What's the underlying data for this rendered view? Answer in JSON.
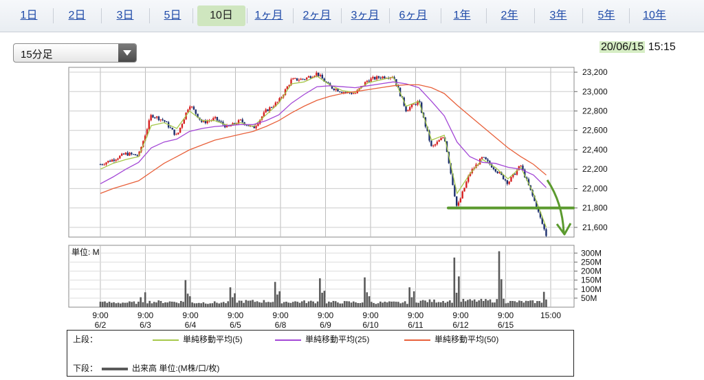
{
  "tabs": [
    {
      "label": "1日",
      "active": false
    },
    {
      "label": "2日",
      "active": false
    },
    {
      "label": "3日",
      "active": false
    },
    {
      "label": "5日",
      "active": false
    },
    {
      "label": "10日",
      "active": true
    },
    {
      "label": "1ヶ月",
      "active": false
    },
    {
      "label": "2ヶ月",
      "active": false
    },
    {
      "label": "3ヶ月",
      "active": false
    },
    {
      "label": "6ヶ月",
      "active": false
    },
    {
      "label": "1年",
      "active": false
    },
    {
      "label": "2年",
      "active": false
    },
    {
      "label": "3年",
      "active": false
    },
    {
      "label": "5年",
      "active": false
    },
    {
      "label": "10年",
      "active": false
    }
  ],
  "interval": {
    "selected": "15分足"
  },
  "header": {
    "date": "20/06/15",
    "time": "15:15"
  },
  "colors": {
    "ma5": "#a6c84a",
    "ma25": "#a347d6",
    "ma50": "#e8603a",
    "up": "#d62020",
    "down": "#1c2f6e",
    "volume": "#5a5a5a",
    "annotation": "#5b9a2e",
    "highlight": "#d6edc4"
  },
  "chart_data": [
    {
      "type": "line",
      "subtype": "candlestick",
      "y_ticks": [
        "23,200",
        "23,000",
        "22,800",
        "22,600",
        "22,400",
        "22,200",
        "22,000",
        "21,800",
        "21,600"
      ],
      "ylim": [
        21500,
        23250
      ],
      "x_tick_times": [
        "9:00",
        "9:00",
        "9:00",
        "9:00",
        "9:00",
        "9:00",
        "9:00",
        "9:00",
        "9:00",
        "9:00",
        "15:00"
      ],
      "x_tick_dates": [
        "6/2",
        "6/3",
        "6/4",
        "6/5",
        "6/8",
        "6/9",
        "6/10",
        "6/11",
        "6/12",
        "6/15",
        ""
      ],
      "price_path": [
        [
          0,
          22250
        ],
        [
          1,
          22300
        ],
        [
          2,
          22360
        ],
        [
          3,
          22340
        ],
        [
          4,
          22760
        ],
        [
          5,
          22700
        ],
        [
          6,
          22540
        ],
        [
          7,
          22870
        ],
        [
          8,
          22680
        ],
        [
          9,
          22720
        ],
        [
          10,
          22630
        ],
        [
          11,
          22700
        ],
        [
          12,
          22620
        ],
        [
          13,
          22800
        ],
        [
          14,
          22900
        ],
        [
          15,
          23120
        ],
        [
          16,
          23130
        ],
        [
          17,
          23190
        ],
        [
          18,
          23050
        ],
        [
          19,
          23000
        ],
        [
          20,
          22980
        ],
        [
          21,
          23120
        ],
        [
          22,
          23150
        ],
        [
          23,
          23160
        ],
        [
          24,
          22810
        ],
        [
          25,
          22900
        ],
        [
          26,
          22420
        ],
        [
          27,
          22540
        ],
        [
          28,
          21800
        ],
        [
          29,
          22160
        ],
        [
          30,
          22320
        ],
        [
          31,
          22200
        ],
        [
          32,
          22060
        ],
        [
          33,
          22240
        ],
        [
          34,
          21900
        ],
        [
          35,
          21520
        ]
      ],
      "series": [
        {
          "name": "単純移動平均(5)",
          "values": [
            22200,
            22260,
            22300,
            22330,
            22650,
            22680,
            22620,
            22800,
            22700,
            22700,
            22650,
            22680,
            22640,
            22760,
            22880,
            23080,
            23100,
            23160,
            23070,
            23010,
            22990,
            23090,
            23120,
            23150,
            22850,
            22900,
            22500,
            22550,
            21950,
            22150,
            22300,
            22220,
            22100,
            22220,
            21950,
            21600
          ]
        },
        {
          "name": "単純移動平均(25)",
          "values": [
            22050,
            22120,
            22200,
            22270,
            22420,
            22480,
            22510,
            22590,
            22620,
            22640,
            22650,
            22660,
            22660,
            22700,
            22760,
            22880,
            22970,
            23050,
            23060,
            23050,
            23040,
            23060,
            23080,
            23100,
            23080,
            23040,
            22900,
            22750,
            22480,
            22330,
            22270,
            22260,
            22220,
            22200,
            22140,
            22010
          ]
        },
        {
          "name": "単純移動平均(50)",
          "values": [
            21950,
            22000,
            22040,
            22080,
            22170,
            22260,
            22330,
            22400,
            22450,
            22500,
            22530,
            22560,
            22590,
            22640,
            22700,
            22780,
            22850,
            22910,
            22950,
            22980,
            23000,
            23020,
            23040,
            23060,
            23070,
            23070,
            23040,
            22980,
            22860,
            22750,
            22640,
            22530,
            22420,
            22330,
            22250,
            22140
          ]
        }
      ],
      "annotations": {
        "support_level": 21800
      }
    },
    {
      "type": "bar",
      "unit_label": "単位: M",
      "y_ticks": [
        "300M",
        "250M",
        "200M",
        "150M",
        "100M",
        "50M"
      ],
      "ylim": [
        0,
        320
      ],
      "session_base": [
        30,
        35,
        30,
        38,
        35,
        32,
        30,
        40,
        42,
        35
      ],
      "session_peak": [
        55,
        150,
        110,
        140,
        160,
        165,
        110,
        160,
        310,
        85
      ],
      "extra_spikes": [
        {
          "session": 7,
          "value": 275
        }
      ],
      "series": [
        {
          "name": "出来高",
          "values": []
        }
      ]
    }
  ],
  "legend": {
    "upper_label": "上段：",
    "lower_label": "下段：",
    "ma5": "単純移動平均(5)",
    "ma25": "単純移動平均(25)",
    "ma50": "単純移動平均(50)",
    "volume": "出来高 単位:(M株/口/枚)"
  }
}
